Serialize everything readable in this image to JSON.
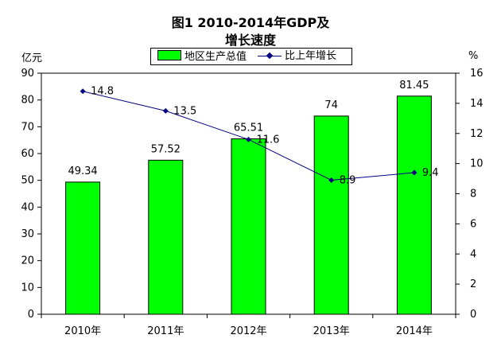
{
  "chart_data": {
    "type": "bar",
    "title_line1": "图1  2010-2014年GDP及",
    "title_line2": "增长速度",
    "ylabel_left": "亿元",
    "ylabel_right": "%",
    "categories": [
      "2010年",
      "2011年",
      "2012年",
      "2013年",
      "2014年"
    ],
    "ylim_left": [
      0,
      90
    ],
    "yticks_left": [
      0,
      10,
      20,
      30,
      40,
      50,
      60,
      70,
      80,
      90
    ],
    "ylim_right": [
      0,
      16
    ],
    "yticks_right": [
      0,
      2,
      4,
      6,
      8,
      10,
      12,
      14,
      16
    ],
    "grid": false,
    "legend_position": "top",
    "series": [
      {
        "name": "地区生产总值",
        "type": "bar",
        "axis": "left",
        "values": [
          49.34,
          57.52,
          65.51,
          74,
          81.45
        ],
        "labels": [
          "49.34",
          "57.52",
          "65.51",
          "74",
          "81.45"
        ],
        "color": "#00ff00"
      },
      {
        "name": "比上年增长",
        "type": "line",
        "axis": "right",
        "values": [
          14.8,
          13.5,
          11.6,
          8.9,
          9.4
        ],
        "labels": [
          "14.8",
          "13.5",
          "11.6",
          "8.9",
          "9.4"
        ],
        "color": "#000080"
      }
    ]
  }
}
